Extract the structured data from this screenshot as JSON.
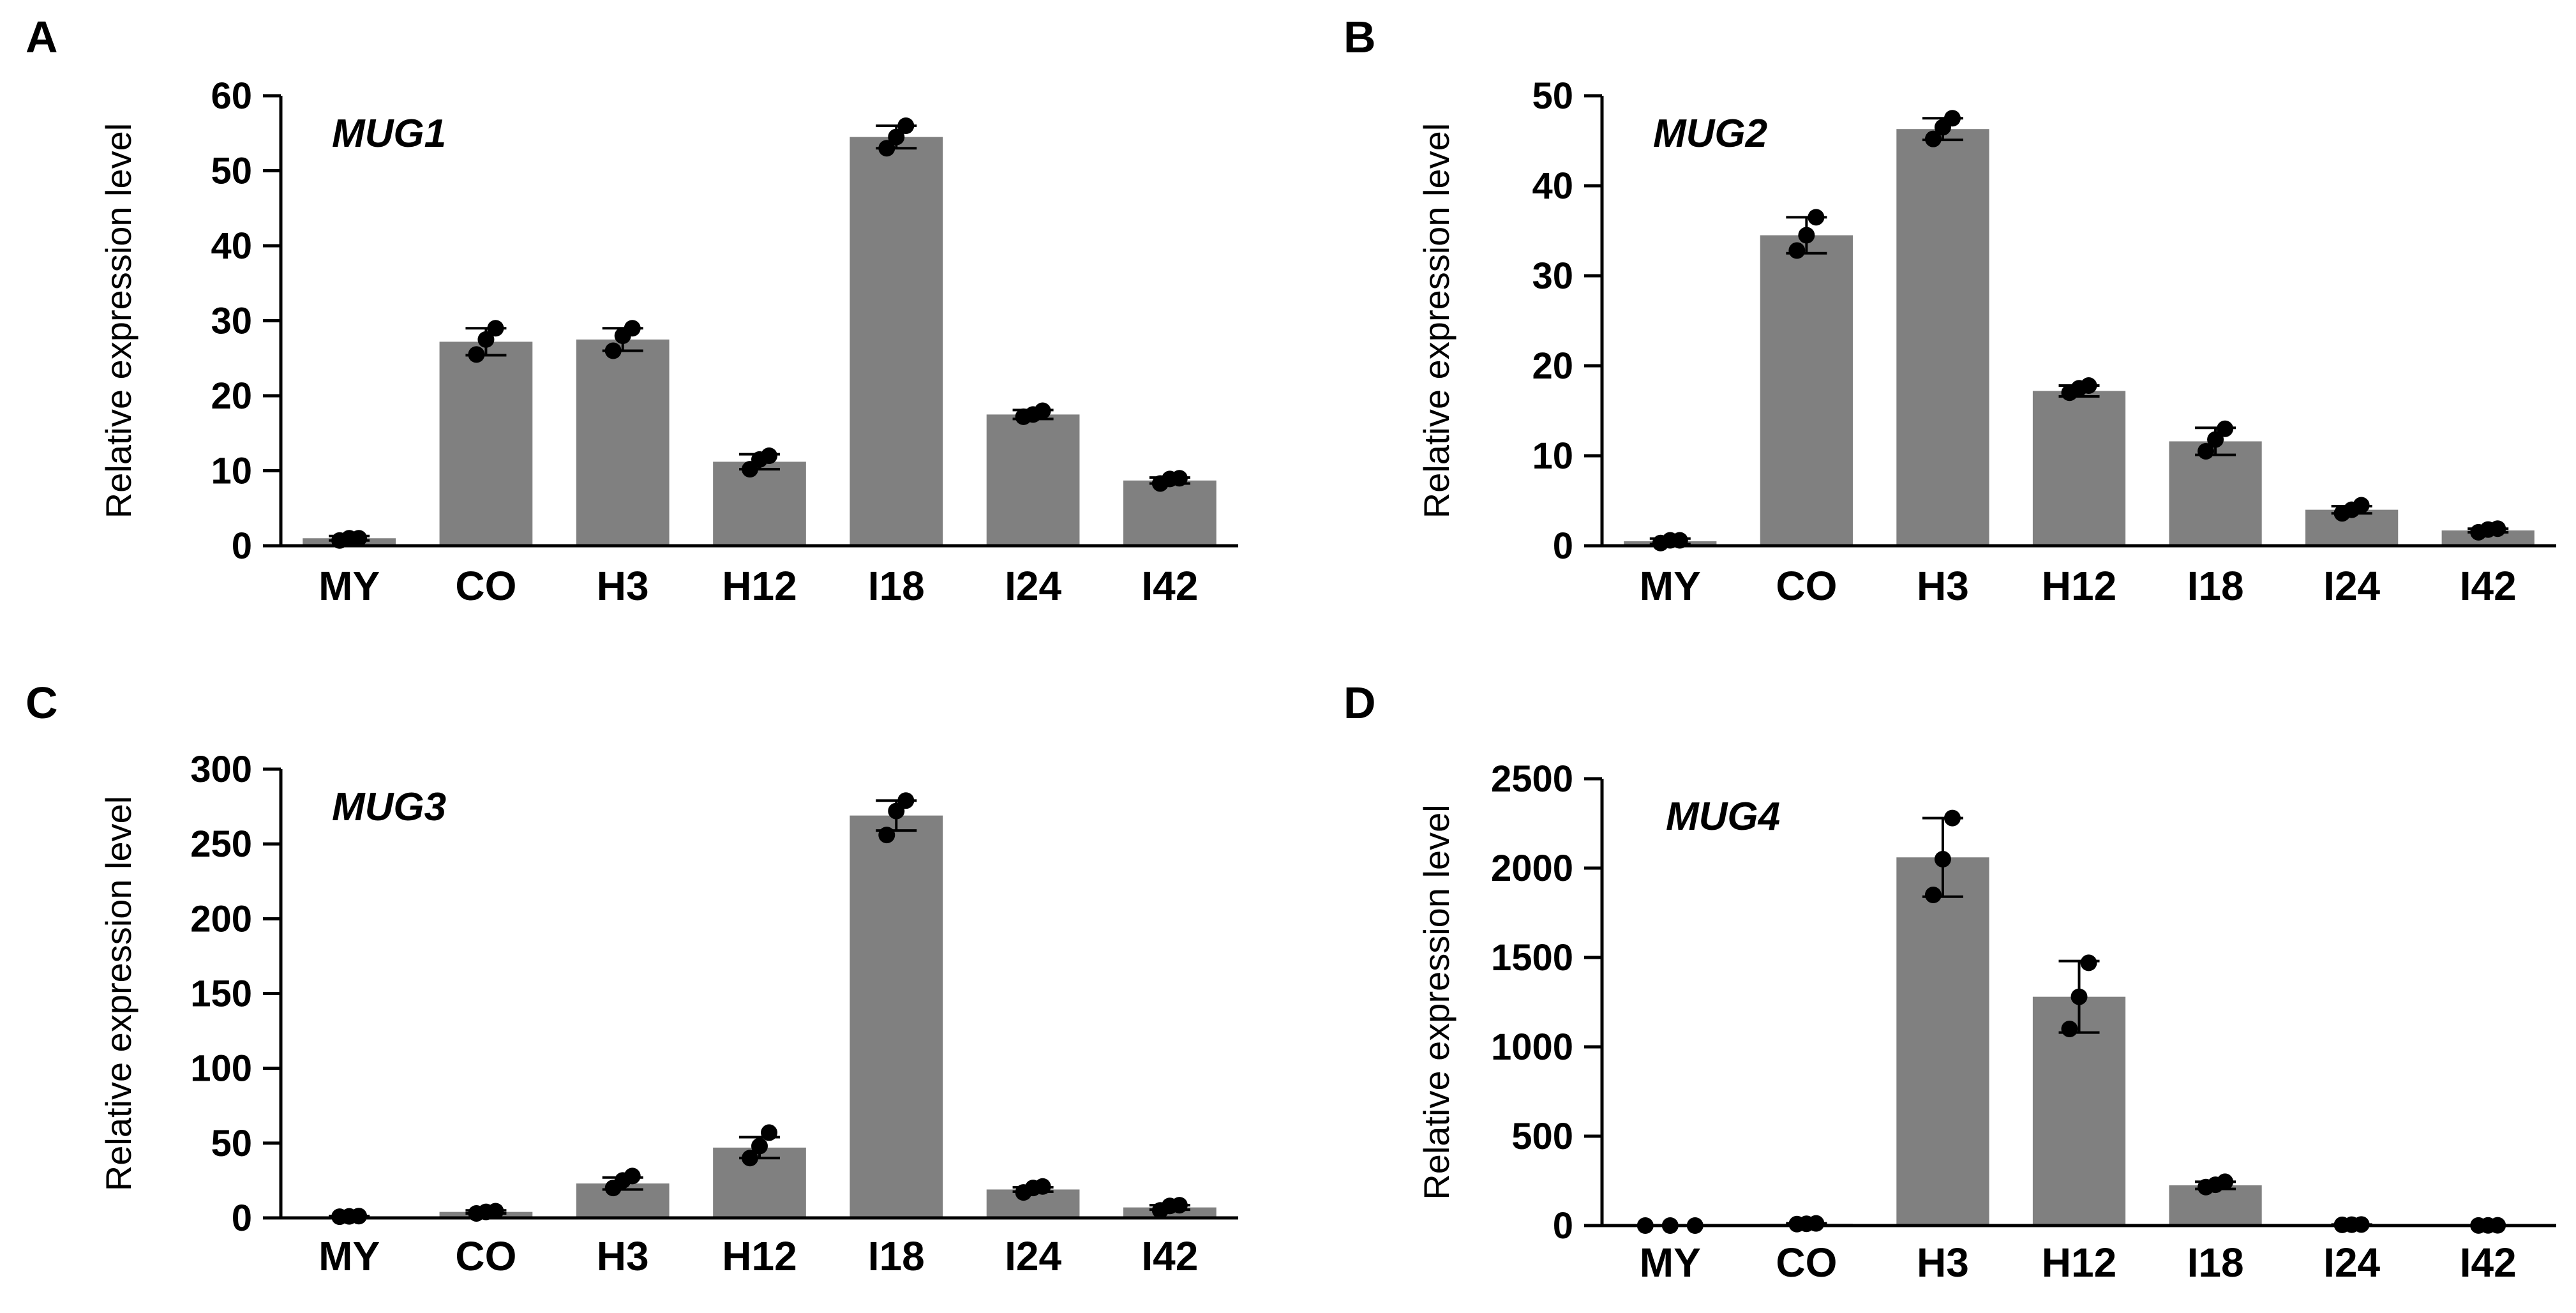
{
  "figure": {
    "background": "#ffffff"
  },
  "style": {
    "bar_color": "#808080",
    "axis_color": "#000000",
    "point_color": "#000000"
  },
  "chart_data": [
    {
      "panel": "A",
      "type": "bar",
      "title": "MUG1",
      "ylabel": "Relative expression level",
      "categories": [
        "MY",
        "CO",
        "H3",
        "H12",
        "I18",
        "I24",
        "I42"
      ],
      "values": [
        1.0,
        27.2,
        27.5,
        11.2,
        54.5,
        17.5,
        8.7
      ],
      "errors": [
        0.3,
        1.8,
        1.5,
        1.0,
        1.5,
        0.6,
        0.4
      ],
      "points": [
        [
          0.7,
          1.0,
          1.0
        ],
        [
          25.5,
          27.5,
          29
        ],
        [
          26,
          28,
          29
        ],
        [
          10.2,
          11.5,
          12
        ],
        [
          53,
          54.5,
          56
        ],
        [
          17.2,
          17.5,
          18
        ],
        [
          8.3,
          8.9,
          9
        ]
      ],
      "ylim": [
        0,
        60
      ],
      "yticks": [
        0,
        10,
        20,
        30,
        40,
        50,
        60
      ]
    },
    {
      "panel": "B",
      "type": "bar",
      "title": "MUG2",
      "ylabel": "Relative expression level",
      "categories": [
        "MY",
        "CO",
        "H3",
        "H12",
        "I18",
        "I24",
        "I42"
      ],
      "values": [
        0.5,
        34.5,
        46.3,
        17.2,
        11.6,
        4.0,
        1.7
      ],
      "errors": [
        0.3,
        2.0,
        1.2,
        0.6,
        1.5,
        0.4,
        0.2
      ],
      "points": [
        [
          0.3,
          0.6,
          0.6
        ],
        [
          32.8,
          34.5,
          36.5
        ],
        [
          45.2,
          46.5,
          47.5
        ],
        [
          17,
          17.5,
          17.8
        ],
        [
          10.5,
          11.8,
          13
        ],
        [
          3.6,
          4,
          4.5
        ],
        [
          1.5,
          1.8,
          1.9
        ]
      ],
      "ylim": [
        0,
        50
      ],
      "yticks": [
        0,
        10,
        20,
        30,
        40,
        50
      ]
    },
    {
      "panel": "C",
      "type": "bar",
      "title": "MUG3",
      "ylabel": "Relative expression level",
      "categories": [
        "MY",
        "CO",
        "H3",
        "H12",
        "I18",
        "I24",
        "I42"
      ],
      "values": [
        1.0,
        4.0,
        23.0,
        47.0,
        269.0,
        19.0,
        7.0
      ],
      "errors": [
        0.3,
        1.0,
        4.0,
        7.0,
        10.0,
        1.5,
        1.5
      ],
      "points": [
        [
          0.8,
          1.0,
          1.2
        ],
        [
          3,
          4,
          4.5
        ],
        [
          20,
          25,
          28
        ],
        [
          40,
          48,
          57
        ],
        [
          256,
          272,
          279
        ],
        [
          17,
          20,
          21
        ],
        [
          5,
          8,
          8.5
        ]
      ],
      "ylim": [
        0,
        300
      ],
      "yticks": [
        0,
        50,
        100,
        150,
        200,
        250,
        300
      ]
    },
    {
      "panel": "D",
      "type": "bar",
      "title": "MUG4",
      "ylabel": "Relative expression level",
      "categories": [
        "MY",
        "CO",
        "H3",
        "H12",
        "I18",
        "I24",
        "I42"
      ],
      "values": [
        0,
        10,
        2060,
        1280,
        225,
        5,
        1
      ],
      "errors": [
        0,
        3,
        220,
        200,
        20,
        1,
        0.5
      ],
      "points": [
        [
          0,
          0,
          0
        ],
        [
          8,
          10,
          12
        ],
        [
          1850,
          2050,
          2280
        ],
        [
          1100,
          1280,
          1470
        ],
        [
          215,
          228,
          245
        ],
        [
          4,
          5,
          6
        ],
        [
          0.5,
          1,
          1.2
        ]
      ],
      "ylim": [
        0,
        2500
      ],
      "yticks": [
        0,
        500,
        1000,
        1500,
        2000,
        2500
      ]
    }
  ]
}
